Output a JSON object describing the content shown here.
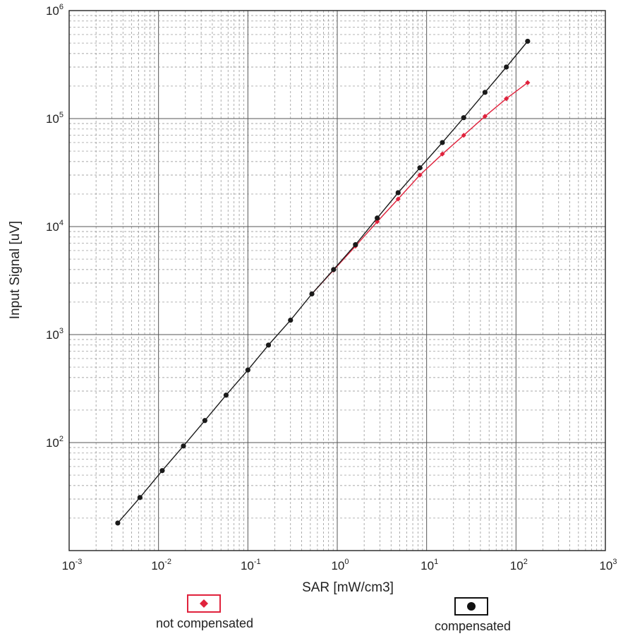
{
  "chart_data": {
    "type": "line",
    "xlabel": "SAR [mW/cm3]",
    "ylabel": "Input Signal [uV]",
    "x_scale": "log",
    "y_scale": "log",
    "xlim": [
      0.001,
      1000
    ],
    "ylim": [
      10,
      1000000
    ],
    "x_ticks": [
      {
        "base": "10",
        "exp": "-3"
      },
      {
        "base": "10",
        "exp": "-2"
      },
      {
        "base": "10",
        "exp": "-1"
      },
      {
        "base": "10",
        "exp": "0"
      },
      {
        "base": "10",
        "exp": "1"
      },
      {
        "base": "10",
        "exp": "2"
      },
      {
        "base": "10",
        "exp": "3"
      }
    ],
    "y_ticks": [
      {
        "base": "10",
        "exp": "2"
      },
      {
        "base": "10",
        "exp": "3"
      },
      {
        "base": "10",
        "exp": "4"
      },
      {
        "base": "10",
        "exp": "5"
      },
      {
        "base": "10",
        "exp": "6"
      }
    ],
    "grid": true,
    "legend_position": "bottom",
    "series": [
      {
        "name": "compensated",
        "color": "#1a1a1a",
        "marker": "circle",
        "x": [
          0.0035,
          0.0062,
          0.011,
          0.019,
          0.033,
          0.057,
          0.1,
          0.17,
          0.3,
          0.52,
          0.91,
          1.6,
          2.8,
          4.8,
          8.4,
          15,
          26,
          45,
          78,
          135
        ],
        "y": [
          18,
          31,
          55,
          93,
          160,
          275,
          470,
          800,
          1360,
          2380,
          4000,
          6800,
          12000,
          20600,
          35000,
          60000,
          102000,
          175000,
          300000,
          520000
        ]
      },
      {
        "name": "not compensated",
        "color": "#e0223c",
        "marker": "diamond",
        "x": [
          0.52,
          0.91,
          1.6,
          2.8,
          4.8,
          8.4,
          15,
          26,
          45,
          78,
          135
        ],
        "y": [
          2380,
          3950,
          6600,
          11100,
          18000,
          30000,
          47000,
          70000,
          105000,
          153000,
          215000
        ]
      }
    ]
  }
}
